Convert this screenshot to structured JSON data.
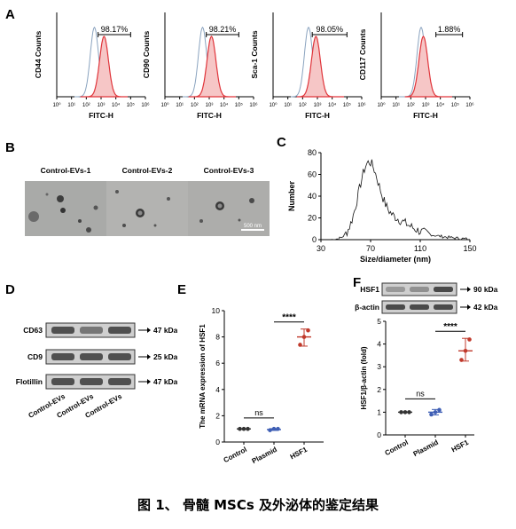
{
  "caption": "图 1、 骨髓 MSCs 及外泌体的鉴定结果",
  "panelA": {
    "label": "A",
    "xlabel": "FITC-H",
    "ticks": [
      "10⁰",
      "10¹",
      "10²",
      "10³",
      "10⁴",
      "10⁵",
      "10⁶"
    ],
    "markers": [
      {
        "ylabel": "CD44 Counts",
        "pct": "98.17%"
      },
      {
        "ylabel": "CD90 Counts",
        "pct": "98.21%"
      },
      {
        "ylabel": "Sca-1 Counts",
        "pct": "98.05%"
      },
      {
        "ylabel": "CD117 Counts",
        "pct": "1.88%"
      }
    ],
    "colors": {
      "control": "#8aa3bf",
      "stained": "#e0353b",
      "fill": "#f6c6c6"
    }
  },
  "panelB": {
    "label": "B",
    "images": [
      "Control-EVs-1",
      "Control-EVs-2",
      "Control-EVs-3"
    ],
    "scalebar": "500 nm"
  },
  "panelC": {
    "label": "C",
    "xlabel": "Size/diameter (nm)",
    "ylabel": "Number",
    "xticks": [
      "30",
      "70",
      "110",
      "150"
    ],
    "yticks": [
      "0",
      "20",
      "40",
      "60",
      "80"
    ]
  },
  "panelD": {
    "label": "D",
    "bands": [
      {
        "name": "CD63",
        "kda": "47 kDa"
      },
      {
        "name": "CD9",
        "kda": "25 kDa"
      },
      {
        "name": "Flotillin",
        "kda": "47 kDa"
      }
    ],
    "lanes": [
      "Control-EVs",
      "Control-EVs",
      "Control-EVs"
    ]
  },
  "panelE": {
    "label": "E"
  },
  "panelF": {
    "label": "F",
    "bands": [
      {
        "name": "HSF1",
        "kda": "90 kDa"
      },
      {
        "name": "β-actin",
        "kda": "42 kDa"
      }
    ]
  },
  "chart_data": [
    {
      "type": "scatter",
      "panel": "E",
      "ylabel": "The mRNA expression of HSF1",
      "categories": [
        "Control",
        "Plasmid",
        "HSF1"
      ],
      "ylim": [
        0,
        10
      ],
      "yticks": [
        "0",
        "2",
        "4",
        "6",
        "8",
        "10"
      ],
      "series": [
        {
          "values": [
            [
              1.0,
              1.0,
              1.0
            ],
            [
              0.9,
              1.0,
              1.0
            ],
            [
              7.4,
              8.0,
              8.5
            ]
          ]
        }
      ],
      "means": [
        1.0,
        0.95,
        8.0
      ],
      "sd_low": [
        1.0,
        0.88,
        7.3
      ],
      "sd_high": [
        1.0,
        1.02,
        8.6
      ],
      "annotations": [
        "ns",
        "****"
      ],
      "colors": [
        "#333333",
        "#3f5fb5",
        "#c0392b"
      ]
    },
    {
      "type": "scatter",
      "panel": "F",
      "ylabel": "HSF1/β-actin (fold)",
      "categories": [
        "Control",
        "Plasmid",
        "HSF1"
      ],
      "ylim": [
        0,
        5
      ],
      "yticks": [
        "0",
        "1",
        "2",
        "3",
        "4",
        "5"
      ],
      "series": [
        {
          "values": [
            [
              1.0,
              1.0,
              1.0
            ],
            [
              0.9,
              1.0,
              1.1
            ],
            [
              3.3,
              3.7,
              4.2
            ]
          ]
        }
      ],
      "means": [
        1.0,
        1.0,
        3.7
      ],
      "sd_low": [
        1.0,
        0.88,
        3.25
      ],
      "sd_high": [
        1.0,
        1.12,
        4.25
      ],
      "annotations": [
        "ns",
        "****"
      ],
      "colors": [
        "#333333",
        "#3f5fb5",
        "#c0392b"
      ]
    }
  ]
}
